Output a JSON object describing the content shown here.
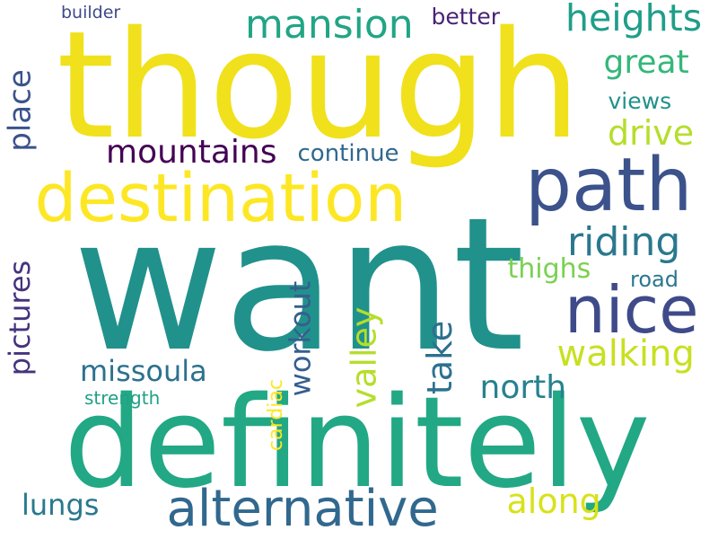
{
  "words": [
    {
      "text": "want",
      "color": "#21918c",
      "rotated": false
    },
    {
      "text": "though",
      "color": "#f0e11c",
      "rotated": false
    },
    {
      "text": "definitely",
      "color": "#22a884",
      "rotated": false
    },
    {
      "text": "destination",
      "color": "#fde725",
      "rotated": false
    },
    {
      "text": "path",
      "color": "#3b528b",
      "rotated": false
    },
    {
      "text": "nice",
      "color": "#3e4a89",
      "rotated": false
    },
    {
      "text": "alternative",
      "color": "#31688e",
      "rotated": false
    },
    {
      "text": "riding",
      "color": "#2a788e",
      "rotated": false
    },
    {
      "text": "mansion",
      "color": "#21a585",
      "rotated": false
    },
    {
      "text": "heights",
      "color": "#1f9e89",
      "rotated": false
    },
    {
      "text": "great",
      "color": "#35b779",
      "rotated": false
    },
    {
      "text": "drive",
      "color": "#b5de2b",
      "rotated": false
    },
    {
      "text": "mountains",
      "color": "#440154",
      "rotated": false
    },
    {
      "text": "walking",
      "color": "#c8e020",
      "rotated": false
    },
    {
      "text": "missoula",
      "color": "#2c718e",
      "rotated": false
    },
    {
      "text": "along",
      "color": "#d8e219",
      "rotated": false
    },
    {
      "text": "north",
      "color": "#26828e",
      "rotated": false
    },
    {
      "text": "place",
      "color": "#3b528b",
      "rotated": true
    },
    {
      "text": "pictures",
      "color": "#46327e",
      "rotated": true
    },
    {
      "text": "workout",
      "color": "#355f8d",
      "rotated": true
    },
    {
      "text": "valley",
      "color": "#b5de2b",
      "rotated": true
    },
    {
      "text": "take",
      "color": "#2c718e",
      "rotated": true
    },
    {
      "text": "cardiac",
      "color": "#fde725",
      "rotated": true
    },
    {
      "text": "thighs",
      "color": "#7ad151",
      "rotated": false
    },
    {
      "text": "road",
      "color": "#2a788e",
      "rotated": false
    },
    {
      "text": "views",
      "color": "#21918c",
      "rotated": false
    },
    {
      "text": "continue",
      "color": "#31688e",
      "rotated": false
    },
    {
      "text": "better",
      "color": "#482475",
      "rotated": false
    },
    {
      "text": "builder",
      "color": "#3e4a89",
      "rotated": false
    },
    {
      "text": "strength",
      "color": "#1fa188",
      "rotated": false
    },
    {
      "text": "lungs",
      "color": "#2a788e",
      "rotated": false
    }
  ]
}
